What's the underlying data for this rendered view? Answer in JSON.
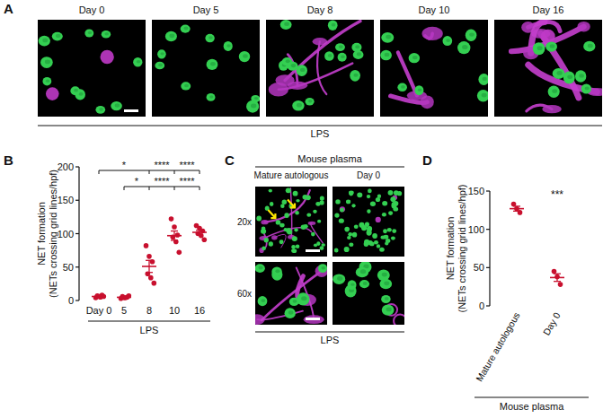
{
  "panel_labels": [
    "A",
    "B",
    "C",
    "D"
  ],
  "panel_a": {
    "images": [
      "Day 0",
      "Day 5",
      "Day 8",
      "Day 10",
      "Day 16"
    ],
    "group_label": "LPS"
  },
  "panel_c": {
    "header": "Mouse plasma",
    "columns": [
      "Mature autologous",
      "Day 0"
    ],
    "rows": [
      "20x",
      "60x"
    ],
    "group_label": "LPS"
  },
  "chart_data": [
    {
      "type": "scatter",
      "categories": [
        "Day 0",
        "5",
        "8",
        "10",
        "16"
      ],
      "points": [
        [
          4,
          6,
          8,
          7,
          5,
          6
        ],
        [
          3,
          4,
          5,
          6,
          4,
          7
        ],
        [
          82,
          66,
          58,
          40,
          34,
          26
        ],
        [
          122,
          110,
          98,
          95,
          88,
          72
        ],
        [
          112,
          108,
          104,
          100,
          97,
          91
        ]
      ],
      "values": [
        6,
        4.8,
        51,
        97,
        102
      ],
      "errors": [
        0.6,
        0.6,
        9,
        7,
        3
      ],
      "color": "#c8102e",
      "ylim": [
        0,
        200
      ],
      "yticks": [
        0,
        50,
        100,
        150,
        200
      ],
      "y_label": [
        "NET formation",
        "(NETs crossing grid lines/hpf)"
      ],
      "x_group_label": "LPS",
      "significance": [
        {
          "from": 0,
          "to": [
            2,
            3,
            4
          ],
          "labels": [
            "*",
            "****",
            "****"
          ]
        },
        {
          "from": 1,
          "to": [
            2,
            3,
            4
          ],
          "labels": [
            "*",
            "****",
            "****"
          ]
        }
      ]
    },
    {
      "type": "scatter",
      "categories": [
        "Mature autologous",
        "Day 0"
      ],
      "points": [
        [
          133,
          127,
          122
        ],
        [
          45,
          38,
          28
        ]
      ],
      "values": [
        127,
        37
      ],
      "errors": [
        3.2,
        5
      ],
      "color": "#c8102e",
      "ylim": [
        0,
        150
      ],
      "yticks": [
        0,
        50,
        100,
        150
      ],
      "y_label": [
        "NET formation",
        "(NETs crossing grid lines/hpf)"
      ],
      "x_group_label": "Mouse plasma",
      "annotations": [
        {
          "text": "***",
          "category": 1
        }
      ]
    }
  ]
}
